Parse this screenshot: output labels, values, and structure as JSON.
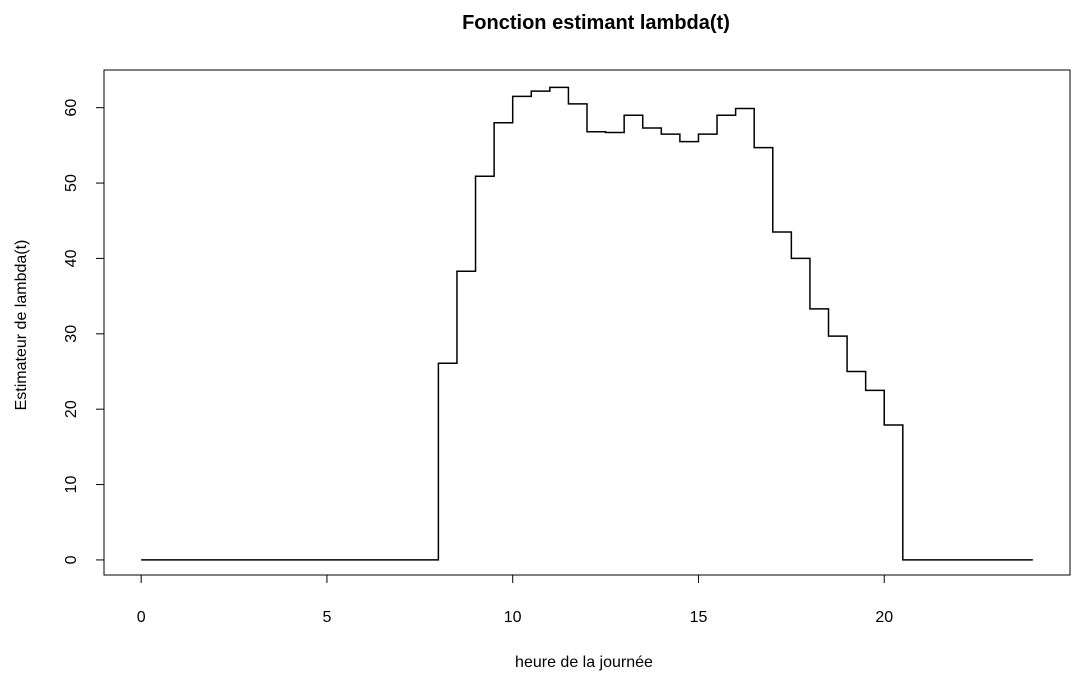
{
  "chart_data": {
    "type": "line",
    "title": "Fonction estimant lambda(t)",
    "xlabel": "heure de la journée",
    "ylabel": "Estimateur de lambda(t)",
    "xlim": [
      -1,
      25
    ],
    "ylim": [
      -2,
      65
    ],
    "xticks": [
      0,
      5,
      10,
      15,
      20
    ],
    "yticks": [
      0,
      10,
      20,
      30,
      40,
      50,
      60
    ],
    "grid": false,
    "legend": "none",
    "line_color": "#000000",
    "step_x": [
      0,
      8,
      8.5,
      9,
      9.5,
      10,
      10.5,
      11,
      11.5,
      12,
      12.5,
      13,
      13.5,
      14,
      14.5,
      15,
      15.5,
      16,
      16.5,
      17,
      17.5,
      18,
      18.5,
      19,
      19.5,
      20,
      20.5,
      24
    ],
    "step_y": [
      0,
      26.1,
      38.3,
      50.9,
      58.0,
      61.5,
      62.2,
      62.7,
      60.5,
      56.8,
      56.7,
      59.0,
      57.3,
      56.5,
      55.5,
      56.5,
      59.0,
      59.9,
      54.7,
      43.5,
      40.0,
      33.3,
      29.7,
      25.0,
      22.5,
      17.9,
      0,
      0
    ]
  }
}
